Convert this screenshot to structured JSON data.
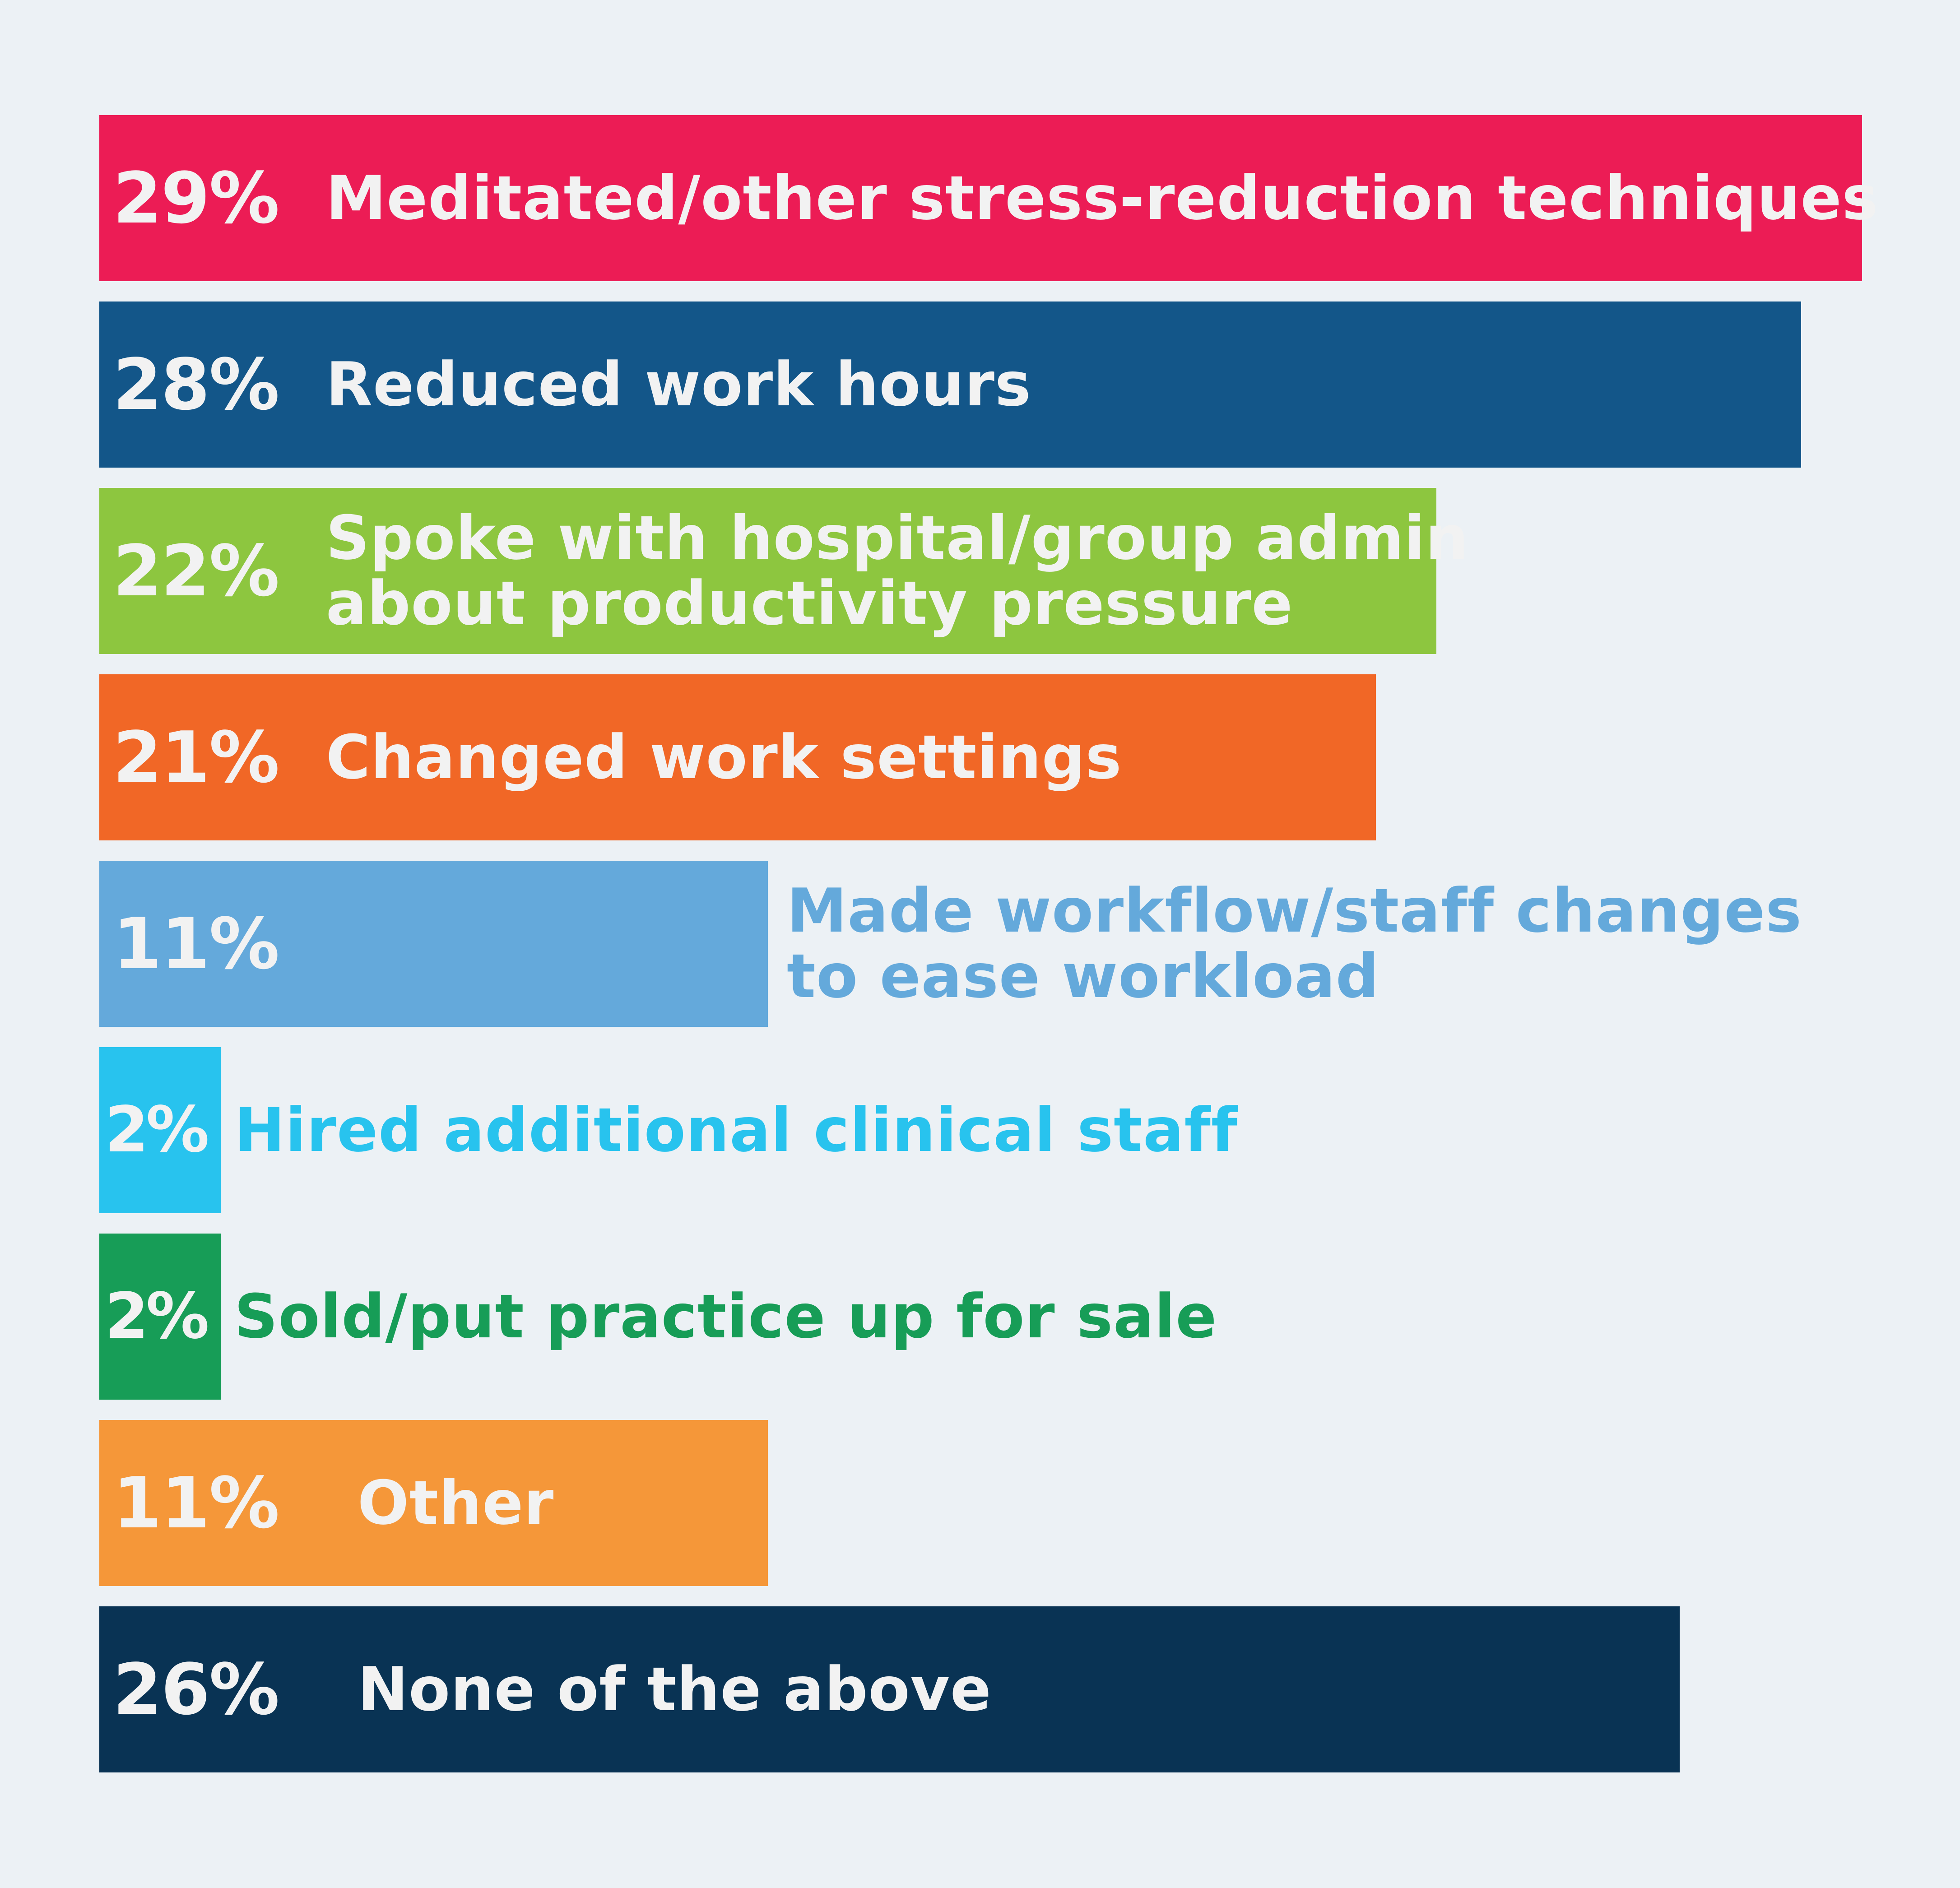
{
  "chart_data": {
    "type": "bar",
    "orientation": "horizontal",
    "title": "",
    "xlabel": "",
    "ylabel": "",
    "xlim": [
      0,
      29
    ],
    "grid": false,
    "legend": "none",
    "unit": "%",
    "bars": [
      {
        "value": 29,
        "value_label": "29%",
        "label_lines": [
          "Meditated/other stress-reduction techniques"
        ],
        "color": "#ec1c55",
        "label_color": "#f2f2f2",
        "label_placement": "inside",
        "label_indent": 0
      },
      {
        "value": 28,
        "value_label": "28%",
        "label_lines": [
          "Reduced work hours"
        ],
        "color": "#135689",
        "label_color": "#f2f2f2",
        "label_placement": "inside",
        "label_indent": 0
      },
      {
        "value": 22,
        "value_label": "22%",
        "label_lines": [
          "Spoke with hospital/group admin",
          "about productivity pressure"
        ],
        "color": "#8dc63f",
        "label_color": "#f2f2f2",
        "label_placement": "inside",
        "label_indent": 0
      },
      {
        "value": 21,
        "value_label": "21%",
        "label_lines": [
          "Changed work settings"
        ],
        "color": "#f16726",
        "label_color": "#f2f2f2",
        "label_placement": "inside",
        "label_indent": 0
      },
      {
        "value": 11,
        "value_label": "11%",
        "label_lines": [
          "Made workflow/staff changes",
          "to ease workload"
        ],
        "color": "#64a9db",
        "label_color": "#64a9db",
        "label_placement": "outside",
        "label_indent": 0
      },
      {
        "value": 2,
        "value_label": "2%",
        "label_lines": [
          "Hired additional clinical staff"
        ],
        "color": "#28c3ee",
        "label_color": "#28c3ee",
        "label_placement": "outside",
        "label_indent": 0
      },
      {
        "value": 2,
        "value_label": "2%",
        "label_lines": [
          "Sold/put practice up for sale"
        ],
        "color": "#179d57",
        "label_color": "#179d57",
        "label_placement": "outside",
        "label_indent": 0
      },
      {
        "value": 11,
        "value_label": "11%",
        "label_lines": [
          "Other"
        ],
        "color": "#f59739",
        "label_color": "#f2f2f2",
        "label_placement": "inside",
        "label_indent": 1
      },
      {
        "value": 26,
        "value_label": "26%",
        "label_lines": [
          "None of the above"
        ],
        "color": "#093354",
        "label_color": "#f2f2f2",
        "label_placement": "inside",
        "label_indent": 1
      }
    ]
  }
}
